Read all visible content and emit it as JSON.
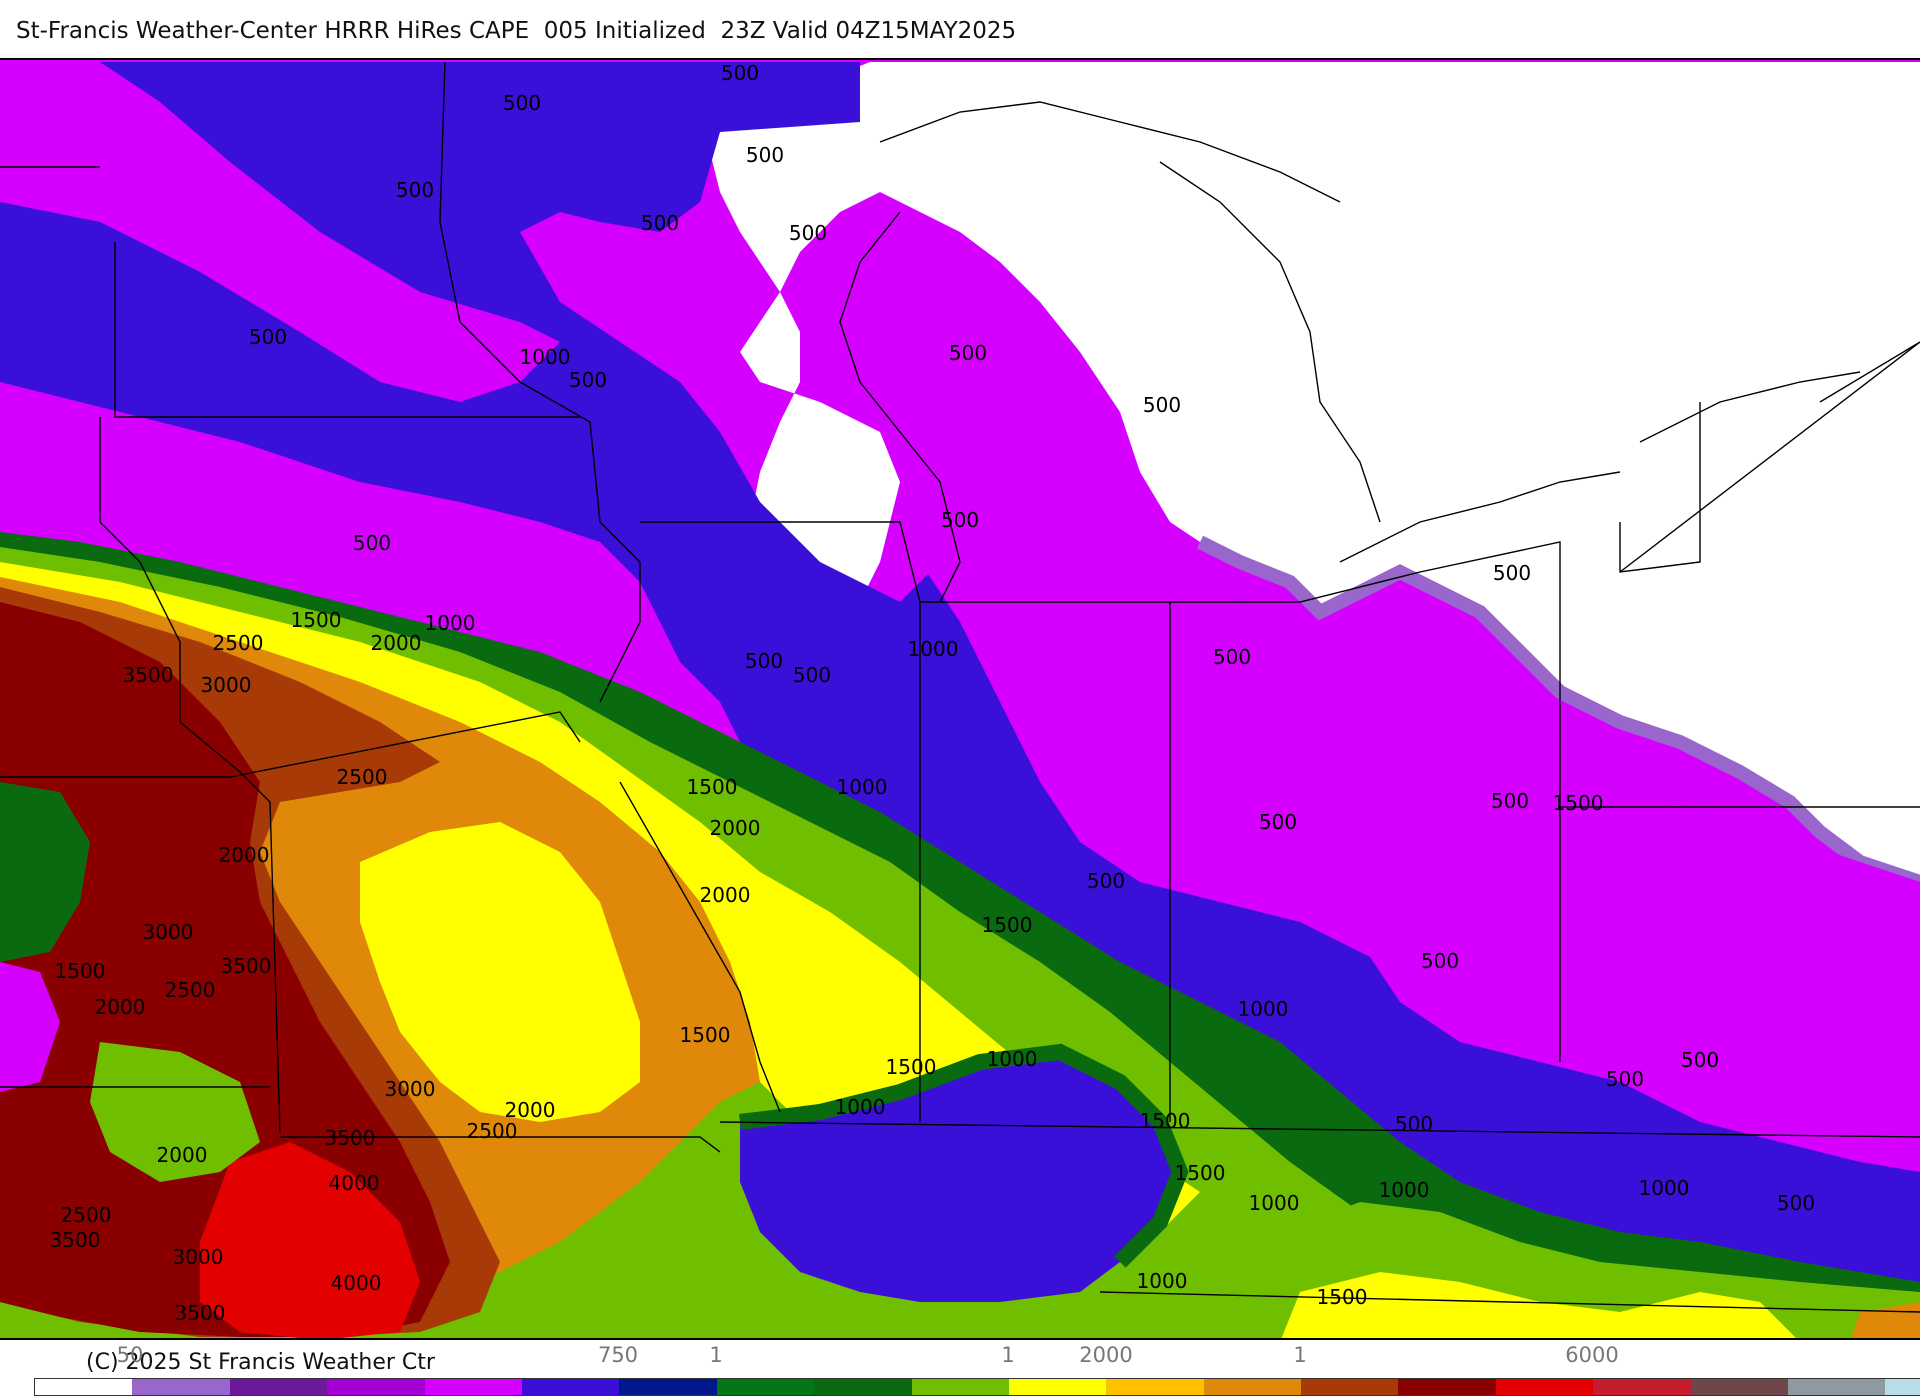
{
  "header": {
    "title": "St-Francis Weather-Center HRRR HiRes CAPE  005 Initialized  23Z Valid 04Z15MAY2025"
  },
  "map": {
    "contour_labels": [
      {
        "text": "500"
      },
      {
        "text": "500"
      },
      {
        "text": "500"
      },
      {
        "text": "500"
      },
      {
        "text": "500"
      },
      {
        "text": "500"
      },
      {
        "text": "500"
      },
      {
        "text": "1000"
      },
      {
        "text": "500"
      },
      {
        "text": "500"
      },
      {
        "text": "500"
      },
      {
        "text": "500"
      },
      {
        "text": "500"
      },
      {
        "text": "1500"
      },
      {
        "text": "1000"
      },
      {
        "text": "2500"
      },
      {
        "text": "2000"
      },
      {
        "text": "3500"
      },
      {
        "text": "3000"
      },
      {
        "text": "500"
      },
      {
        "text": "500"
      },
      {
        "text": "1000"
      },
      {
        "text": "500"
      },
      {
        "text": "500"
      },
      {
        "text": "1500"
      },
      {
        "text": "1000"
      },
      {
        "text": "2500"
      },
      {
        "text": "2000"
      },
      {
        "text": "2000"
      },
      {
        "text": "2000"
      },
      {
        "text": "3000"
      },
      {
        "text": "3500"
      },
      {
        "text": "1500"
      },
      {
        "text": "2500"
      },
      {
        "text": "2000"
      },
      {
        "text": "500"
      },
      {
        "text": "500"
      },
      {
        "text": "500"
      },
      {
        "text": "1500"
      },
      {
        "text": "500"
      },
      {
        "text": "1500"
      },
      {
        "text": "1000"
      },
      {
        "text": "1500"
      },
      {
        "text": "1000"
      },
      {
        "text": "3000"
      },
      {
        "text": "1500"
      },
      {
        "text": "2000"
      },
      {
        "text": "3500"
      },
      {
        "text": "2500"
      },
      {
        "text": "1000"
      },
      {
        "text": "500"
      },
      {
        "text": "500"
      },
      {
        "text": "500"
      },
      {
        "text": "2000"
      },
      {
        "text": "1500"
      },
      {
        "text": "4000"
      },
      {
        "text": "1500"
      },
      {
        "text": "1000"
      },
      {
        "text": "1000"
      },
      {
        "text": "1000"
      },
      {
        "text": "500"
      },
      {
        "text": "2500"
      },
      {
        "text": "3500"
      },
      {
        "text": "3000"
      },
      {
        "text": "4000"
      },
      {
        "text": "1000"
      },
      {
        "text": "3500"
      },
      {
        "text": "1500"
      }
    ]
  },
  "footer": {
    "copyright": "(C) 2025 St Francis Weather Ctr",
    "colorbar_labels": [
      {
        "text": "50"
      },
      {
        "text": "750"
      },
      {
        "text": "1"
      },
      {
        "text": "1"
      },
      {
        "text": "2000"
      },
      {
        "text": "1"
      },
      {
        "text": "6000"
      }
    ],
    "colorbar_colors": [
      "#ffffff",
      "#9966cc",
      "#6a1a9a",
      "#a300d6",
      "#d500ff",
      "#3a0fd8",
      "#00188a",
      "#05751a",
      "#0a6a10",
      "#6fbf00",
      "#ffff00",
      "#ffc000",
      "#e0880a",
      "#a83a08",
      "#8a0000",
      "#e30000",
      "#c41c2c",
      "#6e4848",
      "#8f9aa0",
      "#b8dde8"
    ]
  },
  "colors": {
    "cape_0": "#ffffff",
    "cape_250": "#9966cc",
    "cape_500": "#d500ff",
    "cape_750": "#3a0fd8",
    "cape_1000": "#0a6a10",
    "cape_1250": "#6fbf00",
    "cape_1500": "#ffff00",
    "cape_2000": "#e0880a",
    "cape_2500": "#a83a08",
    "cape_3000": "#8a0000",
    "cape_4000": "#e30000"
  }
}
